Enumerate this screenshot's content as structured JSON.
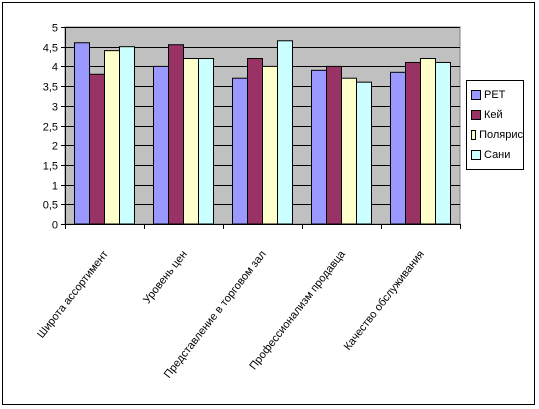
{
  "chart_data": {
    "type": "bar",
    "title": "",
    "xlabel": "",
    "ylabel": "",
    "ylim": [
      0,
      5
    ],
    "ytick_step": 0.5,
    "yticks": [
      "0",
      "0,5",
      "1",
      "1,5",
      "2",
      "2,5",
      "3",
      "3,5",
      "4",
      "4,5",
      "5"
    ],
    "categories": [
      "Широта ассортимент",
      "Уровень цен",
      "Представление в торговом зал",
      "Профессионализм продавца",
      "Качество обслуживания"
    ],
    "series": [
      {
        "name": "РЕТ",
        "color": "#9999ff",
        "values": [
          4.6,
          4.0,
          3.7,
          3.9,
          3.85
        ]
      },
      {
        "name": "Кей",
        "color": "#993366",
        "values": [
          3.8,
          4.55,
          4.2,
          4.0,
          4.1
        ]
      },
      {
        "name": "Полярис",
        "color": "#ffffcc",
        "values": [
          4.4,
          4.2,
          4.0,
          3.7,
          4.2
        ]
      },
      {
        "name": "Сани",
        "color": "#ccffff",
        "values": [
          4.5,
          4.2,
          4.65,
          3.6,
          4.1
        ]
      }
    ],
    "grid": true,
    "plot_background": "#c0c0c0",
    "legend_position": "right"
  }
}
